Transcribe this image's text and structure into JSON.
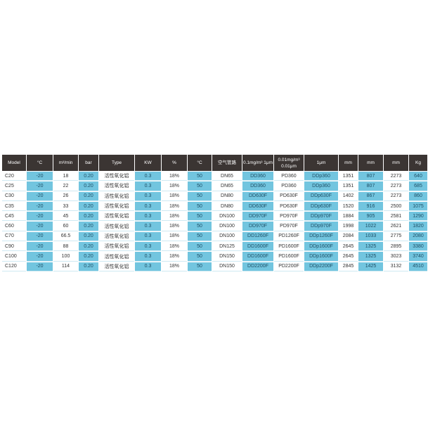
{
  "colors": {
    "header": "#3b3533",
    "accent": "#72c5df"
  },
  "headers": [
    "Model",
    "°C",
    "m³/min",
    "bar",
    "Type",
    "KW",
    "%",
    "°C",
    "空气管路",
    "0.1mg/m³ 1μm",
    "0.01mg/m³ 0.01μm",
    "1μm",
    "mm",
    "mm",
    "mm",
    "Kg"
  ],
  "rows": [
    [
      "C20",
      "-20",
      "18",
      "0.20",
      "活性氧化铝",
      "0.3",
      "18%",
      "50",
      "DN65",
      "DD360",
      "PD360",
      "DDp360",
      "1351",
      "807",
      "2273",
      "640"
    ],
    [
      "C25",
      "-20",
      "22",
      "0.20",
      "活性氧化铝",
      "0.3",
      "18%",
      "50",
      "DN65",
      "DD360",
      "PD360",
      "DDp360",
      "1351",
      "807",
      "2273",
      "685"
    ],
    [
      "C30",
      "-20",
      "26",
      "0.20",
      "活性氧化铝",
      "0.3",
      "18%",
      "50",
      "DN80",
      "DD630F",
      "PD630F",
      "DDp630F",
      "1402",
      "867",
      "2273",
      "860"
    ],
    [
      "C35",
      "-20",
      "33",
      "0.20",
      "活性氧化铝",
      "0.3",
      "18%",
      "50",
      "DN80",
      "DD630F",
      "PD630F",
      "DDp630F",
      "1520",
      "916",
      "2500",
      "1075"
    ],
    [
      "C45",
      "-20",
      "45",
      "0.20",
      "活性氧化铝",
      "0.3",
      "18%",
      "50",
      "DN100",
      "DD970F",
      "PD970F",
      "DDp970F",
      "1884",
      "905",
      "2581",
      "1290"
    ],
    [
      "C60",
      "-20",
      "60",
      "0.20",
      "活性氧化铝",
      "0.3",
      "18%",
      "50",
      "DN100",
      "DD970F",
      "PD970F",
      "DDp970F",
      "1998",
      "1022",
      "2621",
      "1820"
    ],
    [
      "C70",
      "-20",
      "66.5",
      "0.20",
      "活性氧化铝",
      "0.3",
      "18%",
      "50",
      "DN100",
      "DD1260F",
      "PD1260F",
      "DDp1260F",
      "2084",
      "1033",
      "2775",
      "2080"
    ],
    [
      "C90",
      "-20",
      "88",
      "0.20",
      "活性氧化铝",
      "0.3",
      "18%",
      "50",
      "DN125",
      "DD1600F",
      "PD1600F",
      "DDp1600F",
      "2645",
      "1325",
      "2895",
      "3380"
    ],
    [
      "C100",
      "-20",
      "100",
      "0.20",
      "活性氧化铝",
      "0.3",
      "18%",
      "50",
      "DN150",
      "DD1600F",
      "PD1600F",
      "DDp1600F",
      "2645",
      "1325",
      "3023",
      "3740"
    ],
    [
      "C120",
      "-20",
      "114",
      "0.20",
      "活性氧化铝",
      "0.3",
      "18%",
      "50",
      "DN150",
      "DD2200F",
      "PD2200F",
      "DDp2200F",
      "2845",
      "1425",
      "3132",
      "4510"
    ]
  ]
}
